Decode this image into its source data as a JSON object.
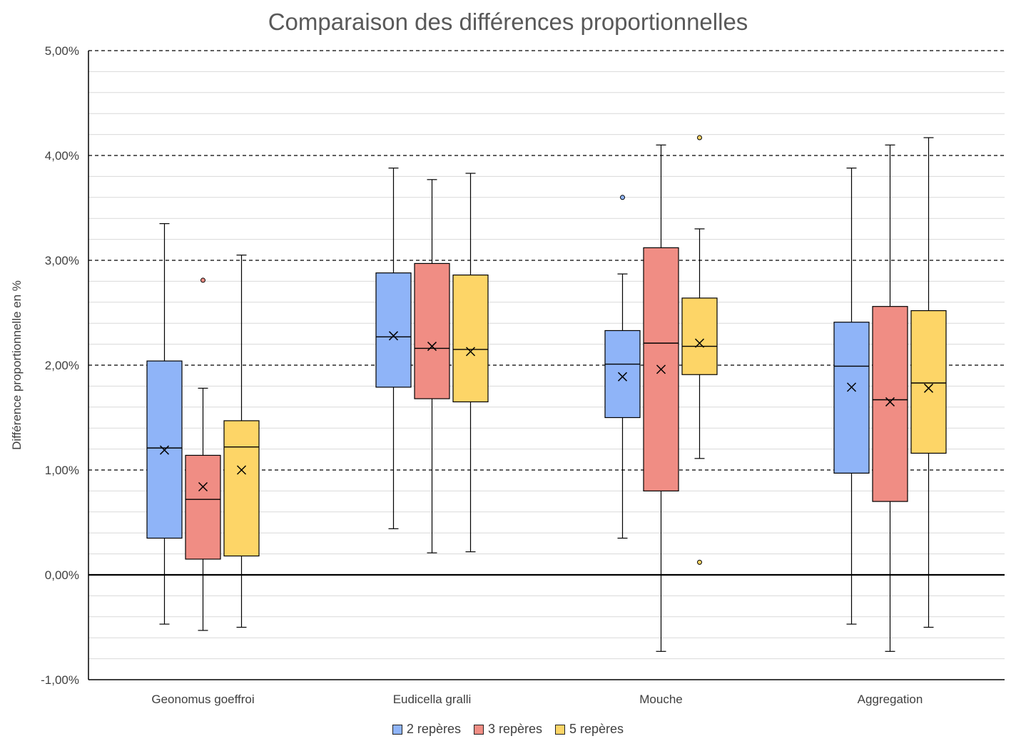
{
  "chart_data": {
    "type": "box",
    "title": "Comparaison des différences proportionnelles",
    "xlabel": "",
    "ylabel": "Différence proportionnelle en %",
    "ylim": [
      -1.0,
      5.0
    ],
    "yticks": [
      {
        "value": -1.0,
        "label": "-1,00%"
      },
      {
        "value": 0.0,
        "label": "0,00%"
      },
      {
        "value": 1.0,
        "label": "1,00%"
      },
      {
        "value": 2.0,
        "label": "2,00%"
      },
      {
        "value": 3.0,
        "label": "3,00%"
      },
      {
        "value": 4.0,
        "label": "4,00%"
      },
      {
        "value": 5.0,
        "label": "5,00%"
      }
    ],
    "minor_grid_step": 0.2,
    "major_grid": "dashed",
    "legend_position": "bottom",
    "categories": [
      "Geonomus goeffroi",
      "Eudicella gralli",
      "Mouche",
      "Aggregation"
    ],
    "series": [
      {
        "name": "2 repères",
        "color": "#8fb4f8",
        "boxes": [
          {
            "min": -0.47,
            "q1": 0.35,
            "median": 1.21,
            "q3": 2.04,
            "max": 3.35,
            "mean": 1.19,
            "outliers": []
          },
          {
            "min": 0.44,
            "q1": 1.79,
            "median": 2.27,
            "q3": 2.88,
            "max": 3.88,
            "mean": 2.28,
            "outliers": []
          },
          {
            "min": 0.35,
            "q1": 1.5,
            "median": 2.01,
            "q3": 2.33,
            "max": 2.87,
            "mean": 1.89,
            "outliers": [
              3.6
            ]
          },
          {
            "min": -0.47,
            "q1": 0.97,
            "median": 1.99,
            "q3": 2.41,
            "max": 3.88,
            "mean": 1.79,
            "outliers": []
          }
        ]
      },
      {
        "name": "3 repères",
        "color": "#f08d84",
        "boxes": [
          {
            "min": -0.53,
            "q1": 0.15,
            "median": 0.72,
            "q3": 1.14,
            "max": 1.78,
            "mean": 0.84,
            "outliers": [
              2.81
            ]
          },
          {
            "min": 0.21,
            "q1": 1.68,
            "median": 2.16,
            "q3": 2.97,
            "max": 3.77,
            "mean": 2.18,
            "outliers": []
          },
          {
            "min": -0.73,
            "q1": 0.8,
            "median": 2.21,
            "q3": 3.12,
            "max": 4.1,
            "mean": 1.96,
            "outliers": []
          },
          {
            "min": -0.73,
            "q1": 0.7,
            "median": 1.67,
            "q3": 2.56,
            "max": 4.1,
            "mean": 1.65,
            "outliers": []
          }
        ]
      },
      {
        "name": "5 repères",
        "color": "#fdd567",
        "boxes": [
          {
            "min": -0.5,
            "q1": 0.18,
            "median": 1.22,
            "q3": 1.47,
            "max": 3.05,
            "mean": 1.0,
            "outliers": []
          },
          {
            "min": 0.22,
            "q1": 1.65,
            "median": 2.15,
            "q3": 2.86,
            "max": 3.83,
            "mean": 2.13,
            "outliers": []
          },
          {
            "min": 1.11,
            "q1": 1.91,
            "median": 2.18,
            "q3": 2.64,
            "max": 3.3,
            "mean": 2.21,
            "outliers": [
              4.17,
              0.12
            ]
          },
          {
            "min": -0.5,
            "q1": 1.16,
            "median": 1.83,
            "q3": 2.52,
            "max": 4.17,
            "mean": 1.78,
            "outliers": []
          }
        ]
      }
    ]
  }
}
